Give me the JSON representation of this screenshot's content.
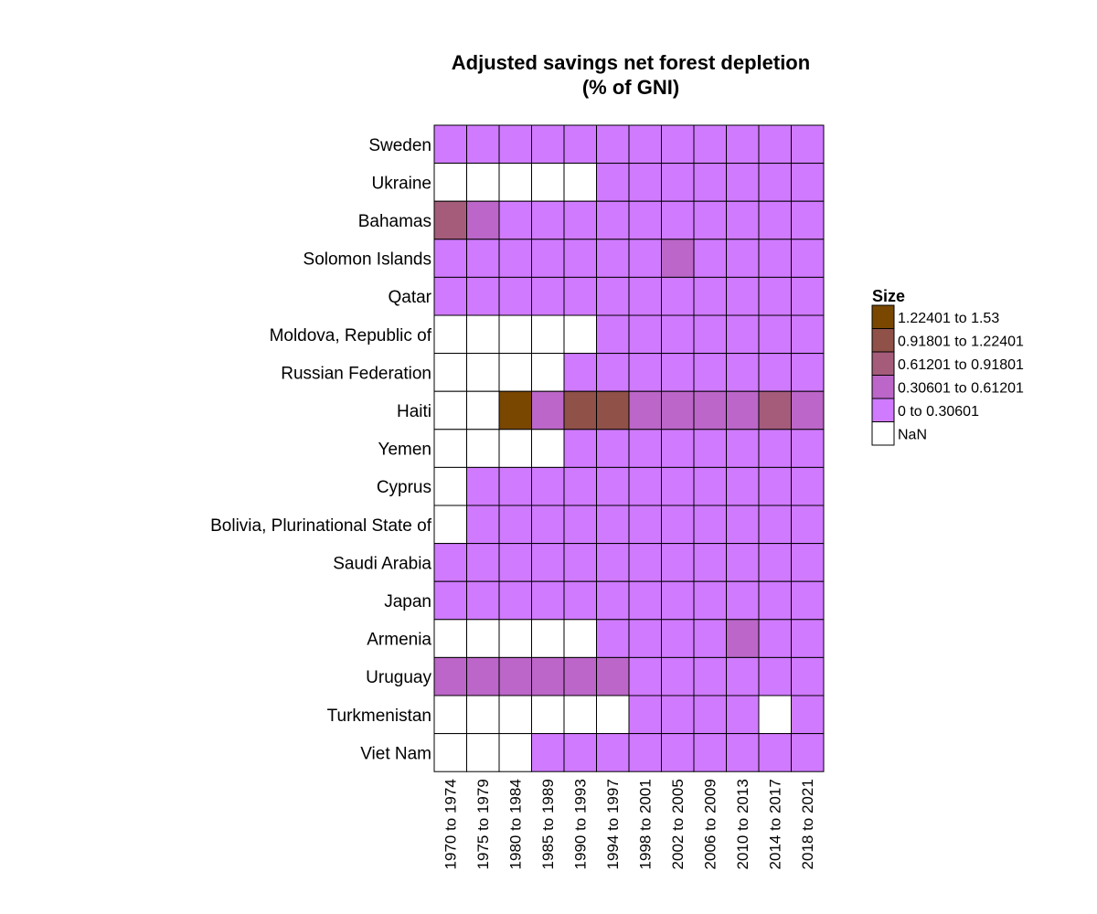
{
  "chart_data": {
    "type": "heatmap",
    "title": [
      "Adjusted savings net forest depletion",
      "(% of GNI)"
    ],
    "rows": [
      "Sweden",
      "Ukraine",
      "Bahamas",
      "Solomon Islands",
      "Qatar",
      "Moldova, Republic of",
      "Russian Federation",
      "Haiti",
      "Yemen",
      "Cyprus",
      "Bolivia, Plurinational State of",
      "Saudi Arabia",
      "Japan",
      "Armenia",
      "Uruguay",
      "Turkmenistan",
      "Viet Nam"
    ],
    "columns": [
      "1970 to 1974",
      "1975 to 1979",
      "1980 to 1984",
      "1985 to 1989",
      "1990 to 1993",
      "1994 to 1997",
      "1998 to 2001",
      "2002 to 2005",
      "2006 to 2009",
      "2010 to 2013",
      "2014 to 2017",
      "2018 to 2021"
    ],
    "category_cells": [
      [
        0,
        0,
        0,
        0,
        0,
        0,
        0,
        0,
        0,
        0,
        0,
        0
      ],
      [
        -1,
        -1,
        -1,
        -1,
        -1,
        0,
        0,
        0,
        0,
        0,
        0,
        0
      ],
      [
        2,
        1,
        0,
        0,
        0,
        0,
        0,
        0,
        0,
        0,
        0,
        0
      ],
      [
        0,
        0,
        0,
        0,
        0,
        0,
        0,
        1,
        0,
        0,
        0,
        0
      ],
      [
        0,
        0,
        0,
        0,
        0,
        0,
        0,
        0,
        0,
        0,
        0,
        0
      ],
      [
        -1,
        -1,
        -1,
        -1,
        -1,
        0,
        0,
        0,
        0,
        0,
        0,
        0
      ],
      [
        -1,
        -1,
        -1,
        -1,
        0,
        0,
        0,
        0,
        0,
        0,
        0,
        0
      ],
      [
        -1,
        -1,
        4,
        1,
        3,
        3,
        1,
        1,
        1,
        1,
        2,
        1
      ],
      [
        -1,
        -1,
        -1,
        -1,
        0,
        0,
        0,
        0,
        0,
        0,
        0,
        0
      ],
      [
        -1,
        0,
        0,
        0,
        0,
        0,
        0,
        0,
        0,
        0,
        0,
        0
      ],
      [
        -1,
        0,
        0,
        0,
        0,
        0,
        0,
        0,
        0,
        0,
        0,
        0
      ],
      [
        0,
        0,
        0,
        0,
        0,
        0,
        0,
        0,
        0,
        0,
        0,
        0
      ],
      [
        0,
        0,
        0,
        0,
        0,
        0,
        0,
        0,
        0,
        0,
        0,
        0
      ],
      [
        -1,
        -1,
        -1,
        -1,
        -1,
        0,
        0,
        0,
        0,
        1,
        0,
        0
      ],
      [
        1,
        1,
        1,
        1,
        1,
        1,
        0,
        0,
        0,
        0,
        0,
        0
      ],
      [
        -1,
        -1,
        -1,
        -1,
        -1,
        -1,
        0,
        0,
        0,
        0,
        -1,
        0
      ],
      [
        -1,
        -1,
        -1,
        0,
        0,
        0,
        0,
        0,
        0,
        0,
        0,
        0
      ]
    ],
    "legend": {
      "title": "Size",
      "entries": [
        {
          "label": "1.22401  to  1.53",
          "color": "#7a4700"
        },
        {
          "label": "0.91801 to 1.22401",
          "color": "#8f5148"
        },
        {
          "label": "0.61201 to 0.91801",
          "color": "#a55c7a"
        },
        {
          "label": "0.30601 to 0.61201",
          "color": "#bb66c8"
        },
        {
          "label": "0 to 0.30601",
          "color": "#d07aff"
        },
        {
          "label": "NaN",
          "color": "#ffffff"
        }
      ]
    },
    "category_colors": [
      "#d07aff",
      "#bb66c8",
      "#a55c7a",
      "#8f5148",
      "#7a4700"
    ],
    "nan_color": "#ffffff"
  }
}
